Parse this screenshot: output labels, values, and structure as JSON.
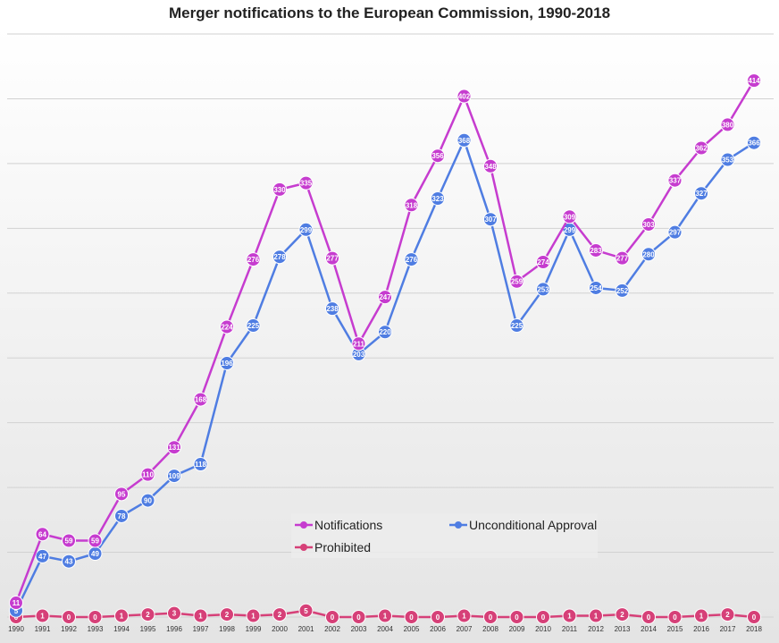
{
  "chart_data": {
    "type": "line",
    "title": "Merger notifications to the European Commission, 1990-2018",
    "xlabel": "",
    "ylabel": "",
    "categories": [
      "1990",
      "1991",
      "1992",
      "1993",
      "1994",
      "1995",
      "1996",
      "1997",
      "1998",
      "1999",
      "2000",
      "2001",
      "2002",
      "2003",
      "2004",
      "2005",
      "2006",
      "2007",
      "2008",
      "2009",
      "2010",
      "2011",
      "2012",
      "2013",
      "2014",
      "2015",
      "2016",
      "2017",
      "2018"
    ],
    "ylim": [
      0,
      450
    ],
    "grid": true,
    "legend_position": "bottom-center",
    "series": [
      {
        "name": "Notifications",
        "color": "#c63ccf",
        "values": [
          11,
          64,
          59,
          59,
          95,
          110,
          131,
          168,
          224,
          276,
          330,
          335,
          277,
          211,
          247,
          318,
          356,
          402,
          348,
          259,
          274,
          309,
          283,
          277,
          303,
          337,
          362,
          380,
          414
        ]
      },
      {
        "name": "Unconditional Approval",
        "color": "#4f7de2",
        "values": [
          5,
          47,
          43,
          49,
          78,
          90,
          109,
          118,
          196,
          225,
          278,
          299,
          238,
          203,
          220,
          276,
          323,
          368,
          307,
          225,
          253,
          299,
          254,
          252,
          280,
          297,
          327,
          353,
          366
        ]
      },
      {
        "name": "Prohibited",
        "color": "#d64078",
        "values": [
          0,
          1,
          0,
          0,
          1,
          2,
          3,
          1,
          2,
          1,
          2,
          5,
          0,
          0,
          1,
          0,
          0,
          1,
          0,
          0,
          0,
          1,
          1,
          2,
          0,
          0,
          1,
          2,
          0
        ]
      }
    ]
  }
}
